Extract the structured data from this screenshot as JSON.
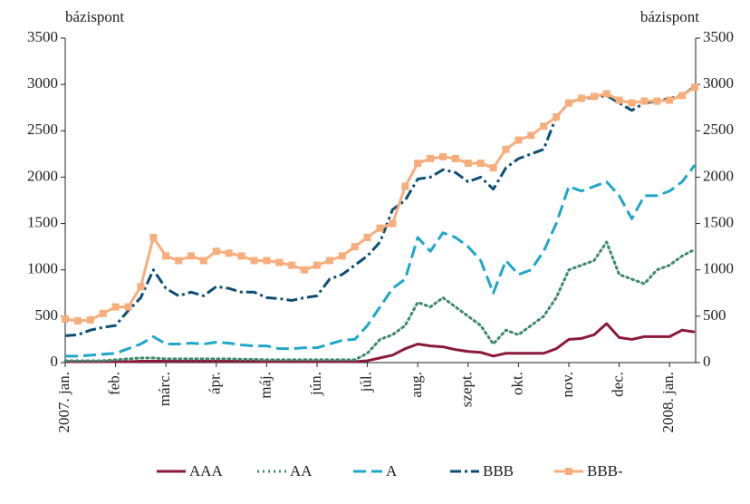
{
  "chart_data": {
    "type": "line",
    "ylabel": "bázispont",
    "y2label": "bázispont",
    "categories": [
      "2007. jan.",
      null,
      null,
      null,
      "feb.",
      null,
      null,
      null,
      "márc.",
      null,
      null,
      null,
      "ápr.",
      null,
      null,
      null,
      "máj.",
      null,
      null,
      null,
      "jún.",
      null,
      null,
      null,
      "júl.",
      null,
      null,
      null,
      "aug.",
      null,
      null,
      null,
      "szept.",
      null,
      null,
      null,
      "okt.",
      null,
      null,
      null,
      "nov.",
      null,
      null,
      null,
      "dec.",
      null,
      null,
      null,
      "2008. jan.",
      null,
      null
    ],
    "ylim": [
      0,
      3500
    ],
    "yticks": [
      0,
      500,
      1000,
      1500,
      2000,
      2500,
      3000,
      3500
    ],
    "y2lim": [
      0,
      3500
    ],
    "y2ticks": [
      0,
      500,
      1000,
      1500,
      2000,
      2500,
      3000,
      3500
    ],
    "series": [
      {
        "name": "AAA",
        "color": "#8b1a3a",
        "style": "solid",
        "values": [
          10,
          10,
          10,
          10,
          10,
          10,
          15,
          15,
          15,
          15,
          15,
          15,
          15,
          15,
          15,
          15,
          10,
          10,
          10,
          10,
          10,
          10,
          10,
          10,
          20,
          50,
          80,
          150,
          200,
          180,
          170,
          140,
          120,
          110,
          70,
          100,
          100,
          100,
          100,
          150,
          250,
          260,
          300,
          420,
          270,
          250,
          280,
          280,
          280,
          350,
          330
        ]
      },
      {
        "name": "AA",
        "color": "#3f8a6a",
        "style": "dotted",
        "values": [
          20,
          20,
          20,
          20,
          30,
          40,
          50,
          50,
          40,
          40,
          40,
          40,
          40,
          40,
          35,
          35,
          30,
          30,
          30,
          30,
          30,
          30,
          30,
          30,
          100,
          250,
          300,
          400,
          650,
          600,
          700,
          600,
          500,
          400,
          200,
          350,
          300,
          400,
          500,
          700,
          1000,
          1050,
          1100,
          1300,
          950,
          900,
          850,
          1000,
          1050,
          1150,
          1220
        ]
      },
      {
        "name": "A",
        "color": "#1fa7c9",
        "style": "dashed",
        "values": [
          70,
          70,
          80,
          90,
          100,
          150,
          200,
          280,
          200,
          200,
          210,
          200,
          220,
          210,
          190,
          180,
          180,
          150,
          150,
          160,
          160,
          200,
          240,
          250,
          400,
          600,
          800,
          900,
          1350,
          1200,
          1400,
          1350,
          1250,
          1100,
          750,
          1100,
          950,
          1000,
          1200,
          1500,
          1900,
          1850,
          1900,
          1950,
          1800,
          1550,
          1800,
          1800,
          1850,
          1950,
          2130
        ]
      },
      {
        "name": "BBB",
        "color": "#0d4f73",
        "style": "dashdot",
        "values": [
          290,
          300,
          350,
          380,
          400,
          560,
          700,
          1000,
          800,
          720,
          760,
          720,
          820,
          800,
          760,
          760,
          700,
          690,
          670,
          700,
          720,
          900,
          950,
          1050,
          1150,
          1300,
          1650,
          1750,
          1980,
          2000,
          2080,
          2050,
          1950,
          2000,
          1870,
          2100,
          2200,
          2250,
          2300,
          2650,
          2800,
          2850,
          2860,
          2880,
          2800,
          2720,
          2800,
          2820,
          2850,
          2880,
          2980
        ]
      },
      {
        "name": "BBB-",
        "color": "#f7ae7c",
        "style": "squares",
        "values": [
          470,
          450,
          460,
          530,
          600,
          600,
          820,
          1350,
          1150,
          1100,
          1150,
          1100,
          1200,
          1180,
          1150,
          1100,
          1100,
          1080,
          1050,
          1000,
          1050,
          1100,
          1150,
          1250,
          1350,
          1450,
          1500,
          1900,
          2150,
          2200,
          2220,
          2200,
          2150,
          2150,
          2100,
          2300,
          2400,
          2450,
          2550,
          2650,
          2800,
          2850,
          2870,
          2900,
          2830,
          2800,
          2820,
          2820,
          2830,
          2880,
          2970
        ]
      }
    ]
  }
}
